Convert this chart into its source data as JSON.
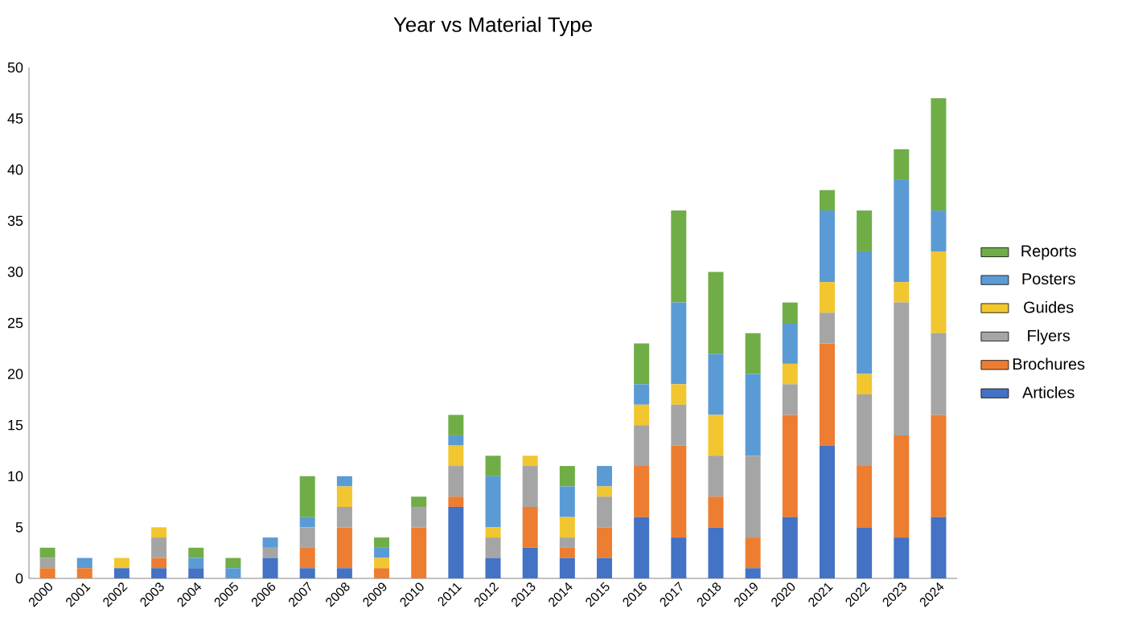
{
  "chart_data": {
    "type": "bar",
    "stacked": true,
    "title": "Year vs Material Type",
    "categories": [
      "2000",
      "2001",
      "2002",
      "2003",
      "2004",
      "2005",
      "2006",
      "2007",
      "2008",
      "2009",
      "2010",
      "2011",
      "2012",
      "2013",
      "2014",
      "2015",
      "2016",
      "2017",
      "2018",
      "2019",
      "2020",
      "2021",
      "2022",
      "2023",
      "2024"
    ],
    "series": [
      {
        "name": "Articles",
        "color": "#4472c4",
        "values": [
          0,
          0,
          1,
          1,
          1,
          0,
          2,
          1,
          1,
          0,
          0,
          7,
          2,
          3,
          2,
          2,
          6,
          4,
          5,
          1,
          6,
          13,
          5,
          4,
          6
        ]
      },
      {
        "name": "Brochures",
        "color": "#ed7d31",
        "values": [
          1,
          1,
          0,
          1,
          0,
          0,
          0,
          2,
          4,
          1,
          5,
          1,
          0,
          4,
          1,
          3,
          5,
          9,
          3,
          3,
          10,
          10,
          6,
          10,
          10
        ]
      },
      {
        "name": "Flyers",
        "color": "#a5a5a5",
        "values": [
          1,
          0,
          0,
          2,
          0,
          0,
          1,
          2,
          2,
          0,
          2,
          3,
          2,
          4,
          1,
          3,
          4,
          4,
          4,
          8,
          3,
          3,
          7,
          13,
          8
        ]
      },
      {
        "name": "Guides",
        "color": "#f2c62f",
        "values": [
          0,
          0,
          1,
          1,
          0,
          0,
          0,
          0,
          2,
          1,
          0,
          2,
          1,
          1,
          2,
          1,
          2,
          2,
          4,
          0,
          2,
          3,
          2,
          2,
          8
        ]
      },
      {
        "name": "Posters",
        "color": "#5b9bd5",
        "values": [
          0,
          1,
          0,
          0,
          1,
          1,
          1,
          1,
          1,
          1,
          0,
          1,
          5,
          0,
          3,
          2,
          2,
          8,
          6,
          8,
          4,
          7,
          12,
          10,
          4
        ]
      },
      {
        "name": "Reports",
        "color": "#70ad47",
        "values": [
          1,
          0,
          0,
          0,
          1,
          1,
          0,
          4,
          0,
          1,
          1,
          2,
          2,
          0,
          2,
          0,
          4,
          9,
          8,
          4,
          2,
          2,
          4,
          3,
          11
        ]
      }
    ],
    "ylim": [
      0,
      50
    ],
    "yticks": [
      0,
      5,
      10,
      15,
      20,
      25,
      30,
      35,
      40,
      45,
      50
    ],
    "legend": "right",
    "grid": false
  }
}
